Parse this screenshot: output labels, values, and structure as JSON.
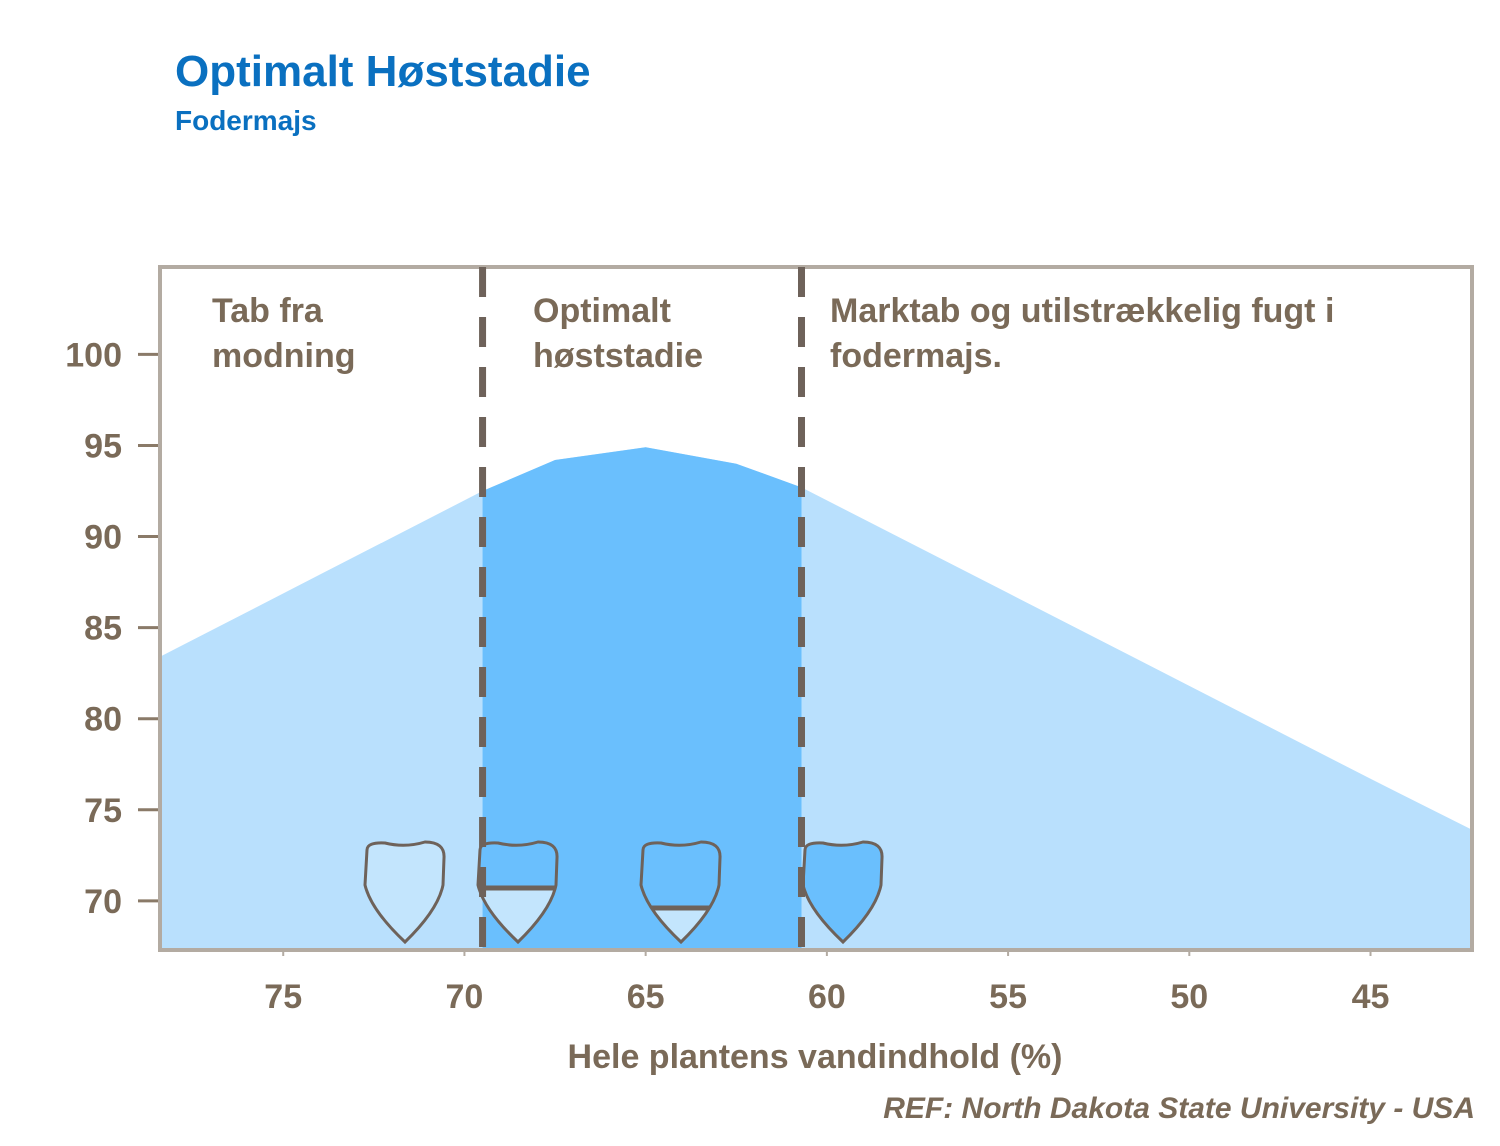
{
  "chart_data": {
    "type": "area",
    "title": "Optimalt Høststadie",
    "subtitle": "Fodermajs",
    "x_label": "Hele plantens vandindhold (%)",
    "source": "REF: North Dakota State University - USA",
    "x": [
      78.4,
      74,
      69.5,
      67.5,
      65,
      62.5,
      60.7,
      55,
      50,
      45,
      42.2
    ],
    "series": [
      {
        "color": "#b9e0fd",
        "highlight_color": "#6abffd",
        "values": [
          83.4,
          87.9,
          92.5,
          94.2,
          94.9,
          94.0,
          92.7,
          86.9,
          81.8,
          76.7,
          73.9
        ]
      }
    ],
    "xlim": [
      78.4,
      42.2
    ],
    "ylim": [
      67.3,
      104.8
    ],
    "xticks": [
      75,
      70,
      65,
      60,
      55,
      50,
      45
    ],
    "yticks": [
      70,
      75,
      80,
      85,
      90,
      95,
      100
    ],
    "grid": false,
    "markers": [
      69.5,
      60.7
    ],
    "regions": [
      {
        "lines": [
          "Tab fra",
          "modning"
        ]
      },
      {
        "lines": [
          "Optimalt",
          "høststadie"
        ]
      },
      {
        "lines": [
          "Marktab og utilstrækkelig fugt i",
          "fodermajs."
        ]
      }
    ]
  }
}
